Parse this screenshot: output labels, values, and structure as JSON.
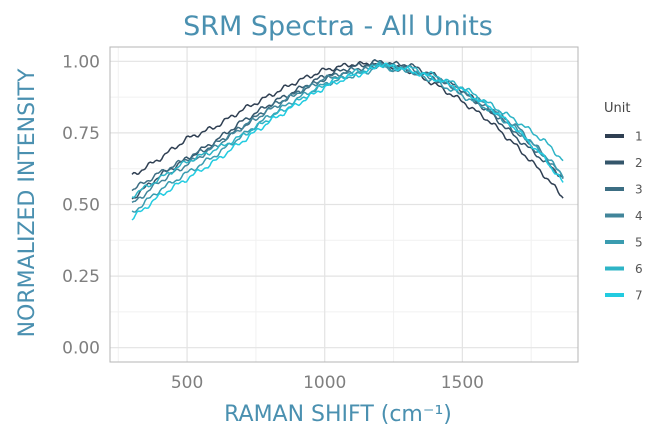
{
  "chart_data": {
    "type": "line",
    "title": "SRM Spectra - All Units",
    "xlabel": "RAMAN SHIFT (cm⁻¹)",
    "ylabel": "NORMALIZED INTENSITY",
    "xlim": [
      220,
      1920
    ],
    "ylim": [
      -0.05,
      1.05
    ],
    "xticks": [
      500,
      1000,
      1500
    ],
    "yticks": [
      0.0,
      0.25,
      0.5,
      0.75,
      1.0
    ],
    "xtick_labels": [
      "500",
      "1000",
      "1500"
    ],
    "ytick_labels": [
      "0.00",
      "0.25",
      "0.50",
      "0.75",
      "1.00"
    ],
    "grid": true,
    "legend": {
      "title": "Unit",
      "position": "right"
    },
    "x": [
      300,
      400,
      500,
      600,
      700,
      800,
      900,
      1000,
      1100,
      1150,
      1200,
      1250,
      1300,
      1400,
      1500,
      1600,
      1700,
      1800,
      1870
    ],
    "series": [
      {
        "name": "1",
        "color": "#2f3f52",
        "values": [
          0.6,
          0.66,
          0.73,
          0.77,
          0.83,
          0.88,
          0.93,
          0.97,
          0.99,
          0.99,
          0.99,
          0.98,
          0.97,
          0.92,
          0.86,
          0.79,
          0.7,
          0.6,
          0.52
        ]
      },
      {
        "name": "2",
        "color": "#34566b",
        "values": [
          0.52,
          0.6,
          0.66,
          0.72,
          0.79,
          0.85,
          0.9,
          0.95,
          0.98,
          0.99,
          1.0,
          0.99,
          0.99,
          0.95,
          0.9,
          0.82,
          0.73,
          0.65,
          0.59
        ]
      },
      {
        "name": "3",
        "color": "#3c6e83",
        "values": [
          0.55,
          0.61,
          0.66,
          0.71,
          0.77,
          0.84,
          0.89,
          0.94,
          0.97,
          0.98,
          0.99,
          0.98,
          0.98,
          0.94,
          0.89,
          0.83,
          0.75,
          0.66,
          0.58
        ]
      },
      {
        "name": "4",
        "color": "#41859a",
        "values": [
          0.5,
          0.58,
          0.64,
          0.7,
          0.77,
          0.83,
          0.89,
          0.94,
          0.96,
          0.97,
          0.99,
          0.97,
          0.97,
          0.94,
          0.9,
          0.84,
          0.77,
          0.67,
          0.59
        ]
      },
      {
        "name": "5",
        "color": "#3a9cb0",
        "values": [
          0.47,
          0.55,
          0.61,
          0.67,
          0.74,
          0.81,
          0.87,
          0.92,
          0.95,
          0.96,
          0.99,
          0.97,
          0.97,
          0.93,
          0.88,
          0.83,
          0.76,
          0.67,
          0.6
        ]
      },
      {
        "name": "6",
        "color": "#2eb4c6",
        "values": [
          0.53,
          0.59,
          0.65,
          0.69,
          0.74,
          0.8,
          0.86,
          0.92,
          0.96,
          0.97,
          0.99,
          0.98,
          0.98,
          0.95,
          0.91,
          0.85,
          0.79,
          0.72,
          0.65
        ]
      },
      {
        "name": "7",
        "color": "#22cbe0",
        "values": [
          0.45,
          0.53,
          0.59,
          0.65,
          0.72,
          0.79,
          0.85,
          0.91,
          0.95,
          0.96,
          0.99,
          0.98,
          0.97,
          0.94,
          0.9,
          0.84,
          0.76,
          0.66,
          0.57
        ]
      }
    ]
  }
}
